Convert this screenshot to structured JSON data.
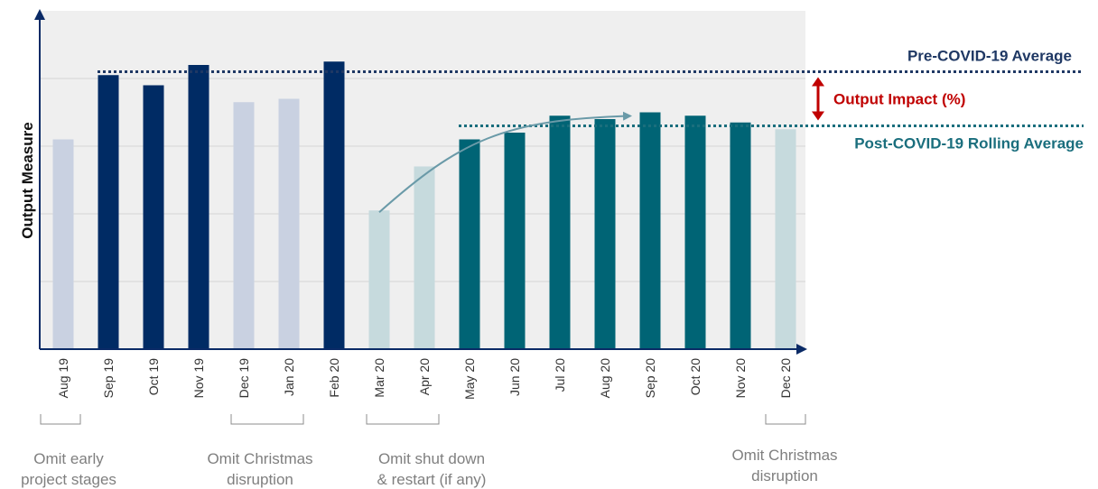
{
  "chart_data": {
    "type": "bar",
    "title": "",
    "xlabel": "",
    "ylabel": "Output Measure",
    "ylim": [
      0,
      100
    ],
    "grid": true,
    "categories": [
      "Aug 19",
      "Sep 19",
      "Oct 19",
      "Nov 19",
      "Dec 19",
      "Jan 20",
      "Feb 20",
      "Mar 20",
      "Apr 20",
      "May 20",
      "Jun 20",
      "Jul 20",
      "Aug 20",
      "Sep 20",
      "Oct 20",
      "Nov 20",
      "Dec 20"
    ],
    "values": [
      62,
      81,
      78,
      84,
      73,
      74,
      85,
      41,
      54,
      62,
      64,
      69,
      68,
      70,
      69,
      67,
      65
    ],
    "groups": [
      "omitted-pre",
      "pre",
      "pre",
      "pre",
      "omitted-pre",
      "omitted-pre",
      "pre",
      "omitted-post",
      "omitted-post",
      "post",
      "post",
      "post",
      "post",
      "post",
      "post",
      "post",
      "omitted-post"
    ],
    "colors": {
      "pre": "#002b64",
      "omitted-pre": "#c9d1e1",
      "post": "#006475",
      "omitted-post": "#c6dadd",
      "pre_line": "#1f3864",
      "post_line": "#1a6e7d",
      "impact": "#c00000",
      "trend": "#6a9aa8",
      "axis": "#0a2a66"
    },
    "reference_lines": [
      {
        "label": "Pre-COVID-19 Average",
        "value": 82
      },
      {
        "label": "Post-COVID-19 Rolling Average",
        "value": 66
      }
    ],
    "impact_label": "Output Impact (%)",
    "annotations": [
      {
        "lines": [
          "Omit early",
          "project stages"
        ]
      },
      {
        "lines": [
          "Omit Christmas",
          "disruption"
        ]
      },
      {
        "lines": [
          "Omit shut down",
          "& restart (if any)"
        ]
      },
      {
        "lines": [
          "Omit Christmas",
          "disruption"
        ]
      }
    ]
  }
}
